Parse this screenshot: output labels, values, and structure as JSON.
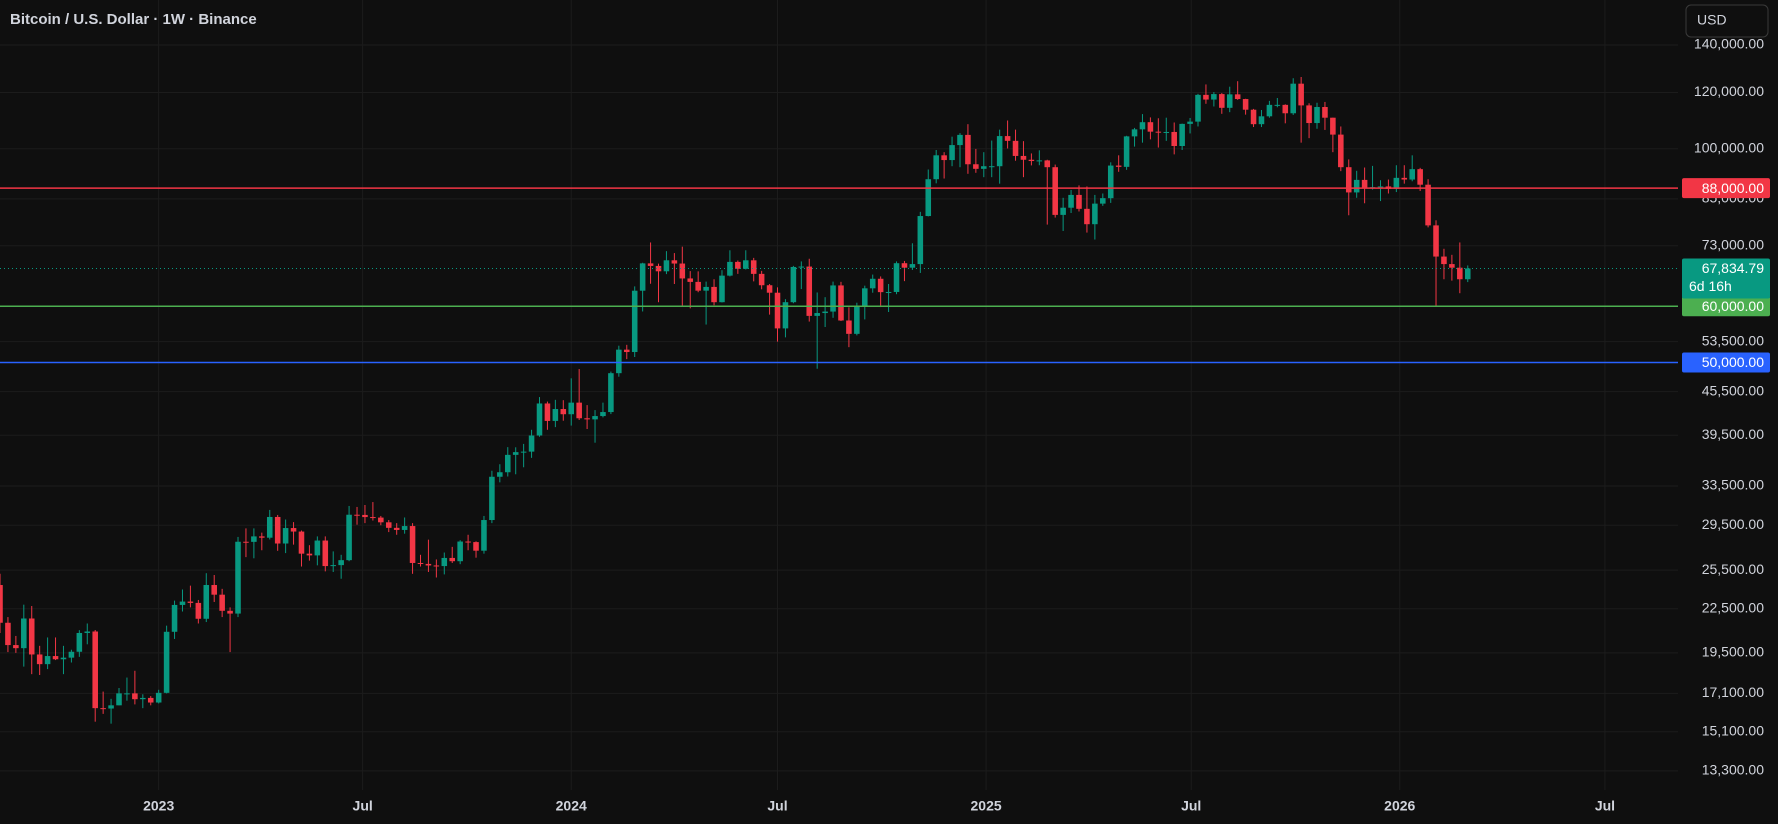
{
  "chart_data": {
    "type": "candlestick",
    "title": "Bitcoin / U.S. Dollar · 1W · Binance",
    "currency": "USD",
    "log_scale": true,
    "grid": true,
    "up_color": "#089981",
    "down_color": "#f23645",
    "xlim": [
      0,
      211.5
    ],
    "xticks": [
      {
        "value": 20,
        "label": "2023"
      },
      {
        "value": 45.71,
        "label": "Jul"
      },
      {
        "value": 72,
        "label": "2024"
      },
      {
        "value": 98,
        "label": "Jul"
      },
      {
        "value": 124.29,
        "label": "2025"
      },
      {
        "value": 150.14,
        "label": "Jul"
      },
      {
        "value": 176.43,
        "label": "2026"
      },
      {
        "value": 202.29,
        "label": "Jul"
      }
    ],
    "ylim": [
      12500,
      162000
    ],
    "yticks": [
      {
        "value": 13300,
        "label": "13,300.00"
      },
      {
        "value": 15100,
        "label": "15,100.00"
      },
      {
        "value": 17100,
        "label": "17,100.00"
      },
      {
        "value": 19500,
        "label": "19,500.00"
      },
      {
        "value": 22500,
        "label": "22,500.00"
      },
      {
        "value": 25500,
        "label": "25,500.00"
      },
      {
        "value": 29500,
        "label": "29,500.00"
      },
      {
        "value": 33500,
        "label": "33,500.00"
      },
      {
        "value": 39500,
        "label": "39,500.00"
      },
      {
        "value": 45500,
        "label": "45,500.00"
      },
      {
        "value": 53500,
        "label": "53,500.00"
      },
      {
        "value": 73000,
        "label": "73,000.00"
      },
      {
        "value": 85000,
        "label": "85,000.00"
      },
      {
        "value": 100000,
        "label": "100,000.00"
      },
      {
        "value": 120000,
        "label": "120,000.00"
      },
      {
        "value": 140000,
        "label": "140,000.00"
      }
    ],
    "levels": [
      {
        "value": 88000,
        "label": "88,000.00",
        "color": "#f23645"
      },
      {
        "value": 60000,
        "label": "60,000.00",
        "color": "#4caf50"
      },
      {
        "value": 50000,
        "label": "50,000.00",
        "color": "#2962ff"
      }
    ],
    "last_price": {
      "value": 67834.79,
      "label": "67,834.79",
      "countdown": "6d 16h"
    },
    "candles": [
      [
        24300,
        25200,
        20800,
        21500
      ],
      [
        21500,
        21900,
        19550,
        20000
      ],
      [
        20000,
        20600,
        19500,
        19800
      ],
      [
        19800,
        22800,
        18650,
        21800
      ],
      [
        21800,
        22700,
        18200,
        19400
      ],
      [
        19400,
        19950,
        18150,
        18800
      ],
      [
        18800,
        20500,
        18500,
        19300
      ],
      [
        19300,
        20500,
        19050,
        19100
      ],
      [
        19100,
        19950,
        18200,
        19200
      ],
      [
        19200,
        19700,
        18900,
        19570
      ],
      [
        19570,
        20990,
        19250,
        20800
      ],
      [
        20800,
        21450,
        20050,
        20900
      ],
      [
        20900,
        21000,
        15600,
        16300
      ],
      [
        16300,
        17200,
        16000,
        16280
      ],
      [
        16280,
        16800,
        15500,
        16450
      ],
      [
        16450,
        17400,
        16450,
        17100
      ],
      [
        17100,
        18000,
        16700,
        17100
      ],
      [
        17100,
        18400,
        16500,
        16780
      ],
      [
        16780,
        17050,
        16300,
        16850
      ],
      [
        16850,
        16950,
        16450,
        16600
      ],
      [
        16600,
        17300,
        16550,
        17130
      ],
      [
        17130,
        21300,
        17100,
        20880
      ],
      [
        20880,
        23100,
        20400,
        22780
      ],
      [
        22780,
        23950,
        22300,
        23030
      ],
      [
        23030,
        24250,
        22600,
        22930
      ],
      [
        22930,
        23150,
        21450,
        21780
      ],
      [
        21780,
        25250,
        21550,
        24300
      ],
      [
        24300,
        25100,
        23000,
        23550
      ],
      [
        23550,
        24000,
        21900,
        22350
      ],
      [
        22350,
        22600,
        19550,
        22150
      ],
      [
        22150,
        28400,
        21900,
        27960
      ],
      [
        27960,
        29200,
        26600,
        27950
      ],
      [
        27950,
        29200,
        26500,
        28450
      ],
      [
        28450,
        28800,
        27200,
        28330
      ],
      [
        28330,
        31000,
        28170,
        30300
      ],
      [
        30300,
        30500,
        27150,
        27800
      ],
      [
        27800,
        30050,
        26950,
        29230
      ],
      [
        29230,
        29800,
        27700,
        28900
      ],
      [
        28900,
        29000,
        25800,
        26900
      ],
      [
        26900,
        27650,
        26300,
        26750
      ],
      [
        26750,
        28450,
        25900,
        28070
      ],
      [
        28070,
        28450,
        25400,
        25840
      ],
      [
        25840,
        27100,
        25350,
        25920
      ],
      [
        25920,
        26800,
        24800,
        26340
      ],
      [
        26340,
        31400,
        26250,
        30520
      ],
      [
        30520,
        31300,
        29550,
        30500
      ],
      [
        30500,
        31500,
        29700,
        30290
      ],
      [
        30290,
        31800,
        29950,
        30240
      ],
      [
        30240,
        30400,
        29500,
        29780
      ],
      [
        29780,
        30000,
        28850,
        29250
      ],
      [
        29250,
        29700,
        28600,
        29050
      ],
      [
        29050,
        30250,
        28700,
        29420
      ],
      [
        29420,
        29700,
        25200,
        26100
      ],
      [
        26100,
        26800,
        25800,
        26020
      ],
      [
        26020,
        28150,
        25350,
        25890
      ],
      [
        25890,
        26400,
        24900,
        25840
      ],
      [
        25840,
        27000,
        25150,
        26530
      ],
      [
        26530,
        27500,
        26100,
        26250
      ],
      [
        26250,
        28100,
        26000,
        27980
      ],
      [
        27980,
        28600,
        27200,
        27930
      ],
      [
        27930,
        28000,
        26550,
        27160
      ],
      [
        27160,
        30400,
        26900,
        30000
      ],
      [
        30000,
        35200,
        29700,
        34520
      ],
      [
        34520,
        35950,
        33900,
        35030
      ],
      [
        35030,
        38000,
        34550,
        37060
      ],
      [
        37060,
        37980,
        34800,
        37390
      ],
      [
        37390,
        38400,
        35600,
        37450
      ],
      [
        37450,
        40200,
        36700,
        39460
      ],
      [
        39460,
        44700,
        39300,
        43780
      ],
      [
        43780,
        44050,
        40200,
        41370
      ],
      [
        41370,
        44300,
        40550,
        43000
      ],
      [
        43000,
        44250,
        41400,
        42280
      ],
      [
        42280,
        47500,
        40750,
        43900
      ],
      [
        43900,
        48950,
        41500,
        41730
      ],
      [
        41730,
        43550,
        40300,
        41580
      ],
      [
        41580,
        42850,
        38550,
        42030
      ],
      [
        42030,
        43900,
        41850,
        42580
      ],
      [
        42580,
        48550,
        42300,
        48300
      ],
      [
        48300,
        52800,
        47750,
        52130
      ],
      [
        52130,
        52950,
        50550,
        51730
      ],
      [
        51730,
        64000,
        50900,
        63110
      ],
      [
        63110,
        69100,
        59000,
        68960
      ],
      [
        68960,
        73800,
        64550,
        68390
      ],
      [
        68390,
        68900,
        60800,
        67210
      ],
      [
        67210,
        71750,
        66600,
        69650
      ],
      [
        69650,
        71300,
        64500,
        68920
      ],
      [
        68920,
        72800,
        60000,
        65670
      ],
      [
        65670,
        67250,
        59600,
        64940
      ],
      [
        64940,
        67200,
        62800,
        63120
      ],
      [
        63120,
        65000,
        56550,
        63890
      ],
      [
        63890,
        65500,
        60200,
        60800
      ],
      [
        60800,
        67450,
        60750,
        66270
      ],
      [
        66270,
        71950,
        66100,
        69290
      ],
      [
        69290,
        69600,
        66650,
        67760
      ],
      [
        67760,
        71950,
        67600,
        69650
      ],
      [
        69650,
        70200,
        65050,
        66650
      ],
      [
        66650,
        67300,
        63400,
        64240
      ],
      [
        64240,
        64500,
        58400,
        62700
      ],
      [
        62700,
        63800,
        53500,
        55850
      ],
      [
        55850,
        61400,
        54250,
        60800
      ],
      [
        60800,
        68400,
        60600,
        68160
      ],
      [
        68160,
        69400,
        63450,
        68250
      ],
      [
        68250,
        70000,
        57100,
        58160
      ],
      [
        58160,
        62750,
        49000,
        58700
      ],
      [
        58700,
        61800,
        56100,
        58980
      ],
      [
        58980,
        65000,
        57800,
        64200
      ],
      [
        64200,
        64950,
        57200,
        57300
      ],
      [
        57300,
        59800,
        52550,
        54870
      ],
      [
        54870,
        60700,
        54600,
        60000
      ],
      [
        60000,
        64150,
        57500,
        63600
      ],
      [
        63600,
        66500,
        62700,
        65600
      ],
      [
        65600,
        66100,
        59850,
        62820
      ],
      [
        62820,
        64500,
        58900,
        62850
      ],
      [
        62850,
        69400,
        62400,
        69000
      ],
      [
        69000,
        69500,
        65100,
        68000
      ],
      [
        68000,
        73600,
        67500,
        68800
      ],
      [
        68800,
        81500,
        66850,
        80400
      ],
      [
        80400,
        93500,
        80300,
        90600
      ],
      [
        90600,
        99600,
        89400,
        97900
      ],
      [
        97900,
        98900,
        90800,
        96400
      ],
      [
        96400,
        104000,
        94500,
        101200
      ],
      [
        101200,
        105200,
        94200,
        104600
      ],
      [
        104600,
        108300,
        92200,
        95100
      ],
      [
        95100,
        99950,
        92500,
        93700
      ],
      [
        93700,
        98900,
        91200,
        94500
      ],
      [
        94500,
        102700,
        91200,
        94500
      ],
      [
        94500,
        106400,
        89300,
        104200
      ],
      [
        104200,
        109600,
        100100,
        102600
      ],
      [
        102600,
        106400,
        96200,
        97700
      ],
      [
        97700,
        102500,
        91200,
        96500
      ],
      [
        96500,
        98500,
        94750,
        96100
      ],
      [
        96100,
        99500,
        94800,
        96300
      ],
      [
        96300,
        96500,
        78200,
        94200
      ],
      [
        94200,
        95000,
        80000,
        80700
      ],
      [
        80700,
        85300,
        76600,
        82600
      ],
      [
        82600,
        87500,
        81200,
        86100
      ],
      [
        86100,
        88800,
        81600,
        82300
      ],
      [
        82300,
        88500,
        76200,
        78300
      ],
      [
        78300,
        86100,
        74500,
        83700
      ],
      [
        83700,
        86500,
        83100,
        85200
      ],
      [
        85200,
        95700,
        83900,
        94700
      ],
      [
        94700,
        97900,
        92800,
        94300
      ],
      [
        94300,
        104300,
        93400,
        104100
      ],
      [
        104100,
        107000,
        100700,
        106500
      ],
      [
        106500,
        111900,
        102000,
        109000
      ],
      [
        109000,
        110700,
        103100,
        105700
      ],
      [
        105700,
        110400,
        100400,
        105600
      ],
      [
        105600,
        110600,
        102600,
        105600
      ],
      [
        105600,
        108900,
        98200,
        100900
      ],
      [
        100900,
        108500,
        99600,
        108400
      ],
      [
        108400,
        110500,
        105100,
        109200
      ],
      [
        109200,
        119500,
        107500,
        119100
      ],
      [
        119100,
        123200,
        115700,
        117300
      ],
      [
        117300,
        120200,
        114700,
        119400
      ],
      [
        119400,
        119800,
        112000,
        114200
      ],
      [
        114200,
        122300,
        112600,
        119300
      ],
      [
        119300,
        124500,
        117200,
        117500
      ],
      [
        117500,
        117600,
        111700,
        113500
      ],
      [
        113500,
        113800,
        107300,
        108300
      ],
      [
        108300,
        113400,
        107300,
        111100
      ],
      [
        111100,
        116800,
        110600,
        115300
      ],
      [
        115300,
        117900,
        114400,
        115300
      ],
      [
        115300,
        115500,
        108600,
        112200
      ],
      [
        112200,
        125700,
        111600,
        123500
      ],
      [
        123500,
        126200,
        102000,
        115100
      ],
      [
        115100,
        115900,
        103500,
        108700
      ],
      [
        108700,
        116100,
        106700,
        114500
      ],
      [
        114500,
        116400,
        106300,
        110600
      ],
      [
        110600,
        110600,
        98900,
        104700
      ],
      [
        104700,
        107500,
        93000,
        94200
      ],
      [
        94200,
        96600,
        80600,
        86800
      ],
      [
        86800,
        93100,
        85300,
        90400
      ],
      [
        90400,
        94100,
        83800,
        88200
      ],
      [
        88200,
        94600,
        87600,
        88300
      ],
      [
        88300,
        90300,
        84400,
        88500
      ],
      [
        88500,
        90500,
        86500,
        87800
      ],
      [
        87800,
        94800,
        86900,
        91000
      ],
      [
        91000,
        94800,
        89300,
        90500
      ],
      [
        90500,
        97900,
        90000,
        93600
      ],
      [
        93600,
        94000,
        87200,
        89000
      ],
      [
        89000,
        90600,
        77500,
        78000
      ],
      [
        78000,
        79300,
        60000,
        70500
      ],
      [
        70500,
        72300,
        65500,
        68800
      ],
      [
        68800,
        70900,
        65200,
        68000
      ],
      [
        68000,
        73800,
        62600,
        65500
      ],
      [
        65500,
        68500,
        64900,
        67834.79
      ]
    ]
  }
}
